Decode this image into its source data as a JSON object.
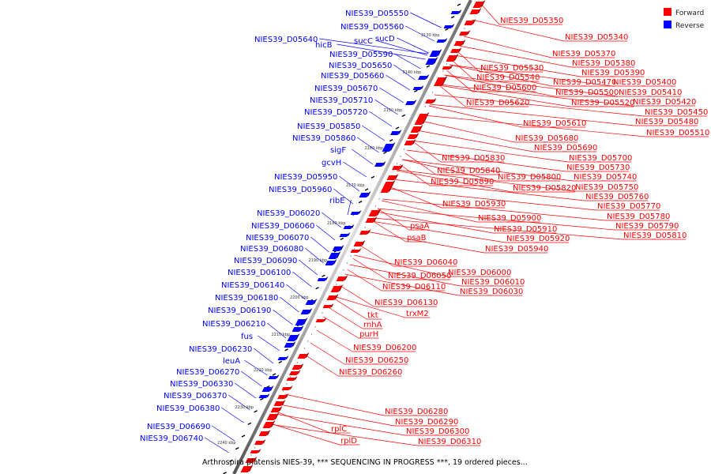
{
  "caption": "Arthrospira platensis NIES-39, *** SEQUENCING IN PROGRESS ***, 19 ordered pieces...",
  "legend": [
    {
      "label": "Forward",
      "color": "#ff0000"
    },
    {
      "label": "Reverse",
      "color": "#0000ff"
    }
  ],
  "colors": {
    "forward": "#ff0000",
    "reverse": "#0000ff",
    "backbone": "#888888",
    "ticks": "#000000"
  },
  "ticks": [
    "2130 kbp",
    "2140 kbp",
    "2150 kbp",
    "2160 kbp",
    "2170 kbp",
    "2180 kbp",
    "2190 kbp",
    "2200 kbp",
    "2210 kbp",
    "2220 kbp",
    "2230 kbp",
    "2240 kbp"
  ],
  "reverse_labels": [
    "NIES39_D05550",
    "NIES39_D05560",
    "NIES39_D05640",
    "hicB",
    "sucC",
    "sucD",
    "NIES39_D05590",
    "NIES39_D05650",
    "NIES39_D05660",
    "NIES39_D05670",
    "NIES39_D05710",
    "NIES39_D05720",
    "NIES39_D05850",
    "NIES39_D05860",
    "sigF",
    "gcvH",
    "NIES39_D05950",
    "NIES39_D05960",
    "ribE",
    "NIES39_D06020",
    "NIES39_D06060",
    "NIES39_D06070",
    "NIES39_D06080",
    "NIES39_D06090",
    "NIES39_D06100",
    "NIES39_D06140",
    "NIES39_D06180",
    "NIES39_D06190",
    "NIES39_D06210",
    "fus",
    "NIES39_D06230",
    "leuA",
    "NIES39_D06270",
    "NIES39_D06330",
    "NIES39_D06370",
    "NIES39_D06380",
    "NIES39_D06690",
    "NIES39_D06740"
  ],
  "forward_labels": [
    "NIES39_D05350",
    "NIES39_D05340",
    "NIES39_D05370",
    "NIES39_D05380",
    "NIES39_D05390",
    "NIES39_D05530",
    "NIES39_D05540",
    "NIES39_D05470",
    "NIES39_D05400",
    "NIES39_D05600",
    "NIES39_D05500",
    "NIES39_D05410",
    "NIES39_D05520",
    "NIES39_D05420",
    "NIES39_D05620",
    "NIES39_D05450",
    "NIES39_D05610",
    "NIES39_D05480",
    "NIES39_D05510",
    "NIES39_D05680",
    "NIES39_D05690",
    "NIES39_D05830",
    "NIES39_D05700",
    "NIES39_D05730",
    "NIES39_D05840",
    "NIES39_D05800",
    "NIES39_D05740",
    "NIES39_D05890",
    "NIES39_D05820",
    "NIES39_D05750",
    "NIES39_D05760",
    "NIES39_D05930",
    "NIES39_D05770",
    "NIES39_D05780",
    "NIES39_D05900",
    "psaA",
    "NIES39_D05790",
    "NIES39_D05910",
    "NIES39_D05810",
    "psaB",
    "NIES39_D05920",
    "NIES39_D05940",
    "NIES39_D06040",
    "NIES39_D06000",
    "NIES39_D06050",
    "NIES39_D06010",
    "NIES39_D06110",
    "NIES39_D06030",
    "NIES39_D06130",
    "trxM2",
    "tkt",
    "rnhA",
    "purH",
    "NIES39_D06200",
    "NIES39_D06250",
    "NIES39_D06260",
    "NIES39_D06280",
    "NIES39_D06290",
    "NIES39_D06300",
    "rplC",
    "NIES39_D06310",
    "rplD"
  ]
}
